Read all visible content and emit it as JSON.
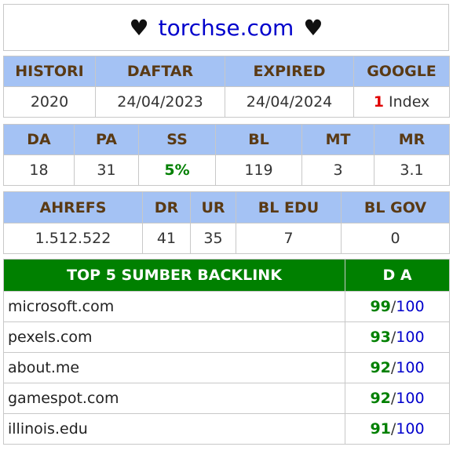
{
  "header": {
    "heart": "♥",
    "domain": "torchse.com"
  },
  "registration": {
    "headers": [
      "HISTORI",
      "DAFTAR",
      "EXPIRED",
      "GOOGLE"
    ],
    "historic": "2020",
    "daftar": "24/04/2023",
    "expired": "24/04/2024",
    "google_count": "1",
    "google_label": "Index"
  },
  "metrics": {
    "headers": [
      "DA",
      "PA",
      "SS",
      "BL",
      "MT",
      "MR"
    ],
    "values": [
      "18",
      "31",
      "5%",
      "119",
      "3",
      "3.1"
    ]
  },
  "ahrefs": {
    "headers": [
      "AHREFS",
      "DR",
      "UR",
      "BL EDU",
      "BL GOV"
    ],
    "values": [
      "1.512.522",
      "41",
      "35",
      "7",
      "0"
    ]
  },
  "backlinks": {
    "title": "TOP 5 SUMBER BACKLINK",
    "da_header": "D A",
    "max": "100",
    "items": [
      {
        "site": "microsoft.com",
        "da": "99"
      },
      {
        "site": "pexels.com",
        "da": "93"
      },
      {
        "site": "about.me",
        "da": "92"
      },
      {
        "site": "gamespot.com",
        "da": "92"
      },
      {
        "site": "illinois.edu",
        "da": "91"
      }
    ]
  }
}
